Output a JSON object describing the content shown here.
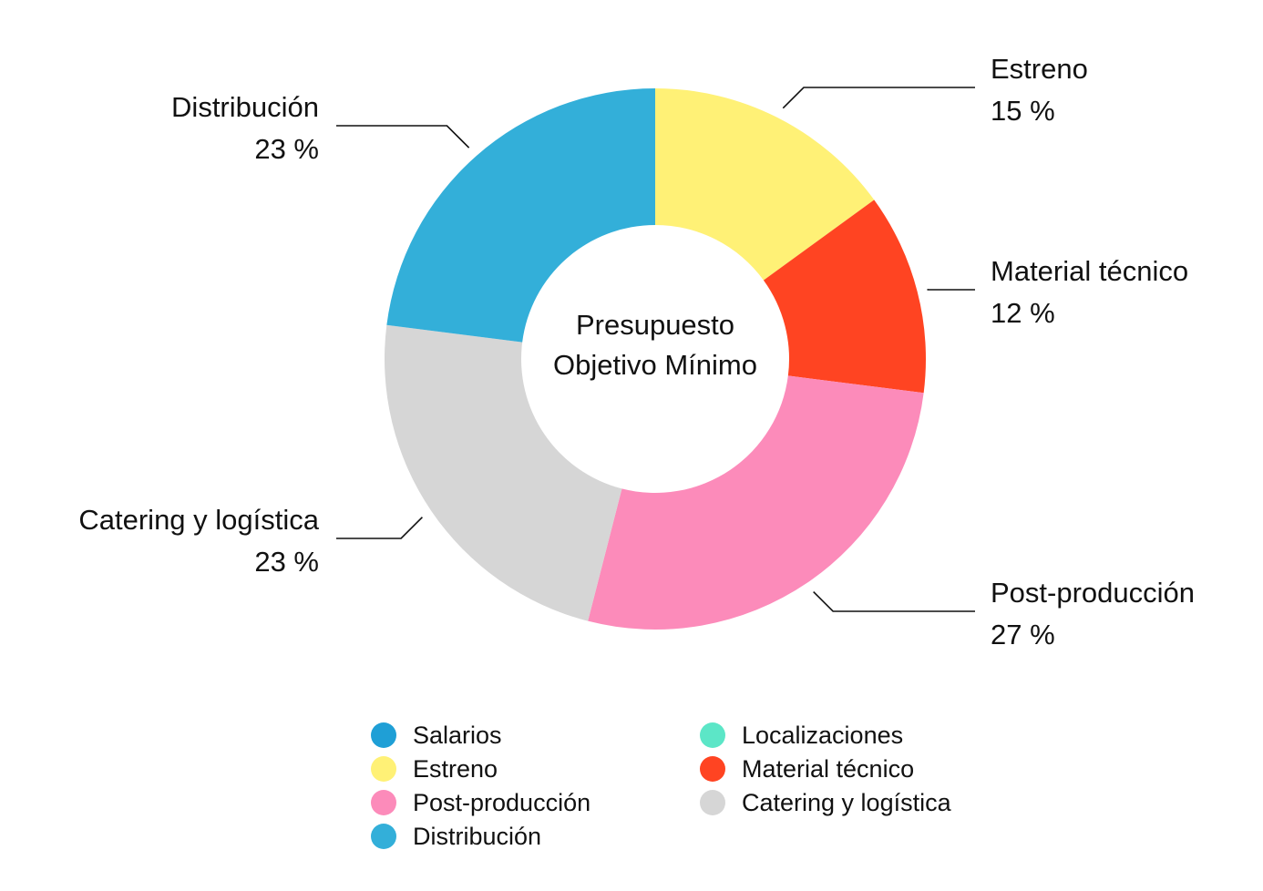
{
  "chart_data": {
    "type": "pie",
    "variant": "donut",
    "center_label": [
      "Presupuesto",
      "Objetivo Mínimo"
    ],
    "slices": [
      {
        "name": "Estreno",
        "value": 15,
        "value_label": "15 %",
        "color": "#fff176"
      },
      {
        "name": "Material técnico",
        "value": 12,
        "value_label": "12 %",
        "color": "#ff4422"
      },
      {
        "name": "Post-producción",
        "value": 27,
        "value_label": "27 %",
        "color": "#fc8bba"
      },
      {
        "name": "Catering y logística",
        "value": 23,
        "value_label": "23 %",
        "color": "#d6d6d6"
      },
      {
        "name": "Distribución",
        "value": 23,
        "value_label": "23 %",
        "color": "#33afd9"
      }
    ],
    "legend": [
      {
        "name": "Salarios",
        "color": "#1f9fd6"
      },
      {
        "name": "Localizaciones",
        "color": "#5ce6c7"
      },
      {
        "name": "Estreno",
        "color": "#fff176"
      },
      {
        "name": "Material técnico",
        "color": "#ff4422"
      },
      {
        "name": "Post-producción",
        "color": "#fc8bba"
      },
      {
        "name": "Catering y logística",
        "color": "#d6d6d6"
      },
      {
        "name": "Distribución",
        "color": "#33afd9"
      }
    ],
    "legend_placement": "bottom"
  }
}
